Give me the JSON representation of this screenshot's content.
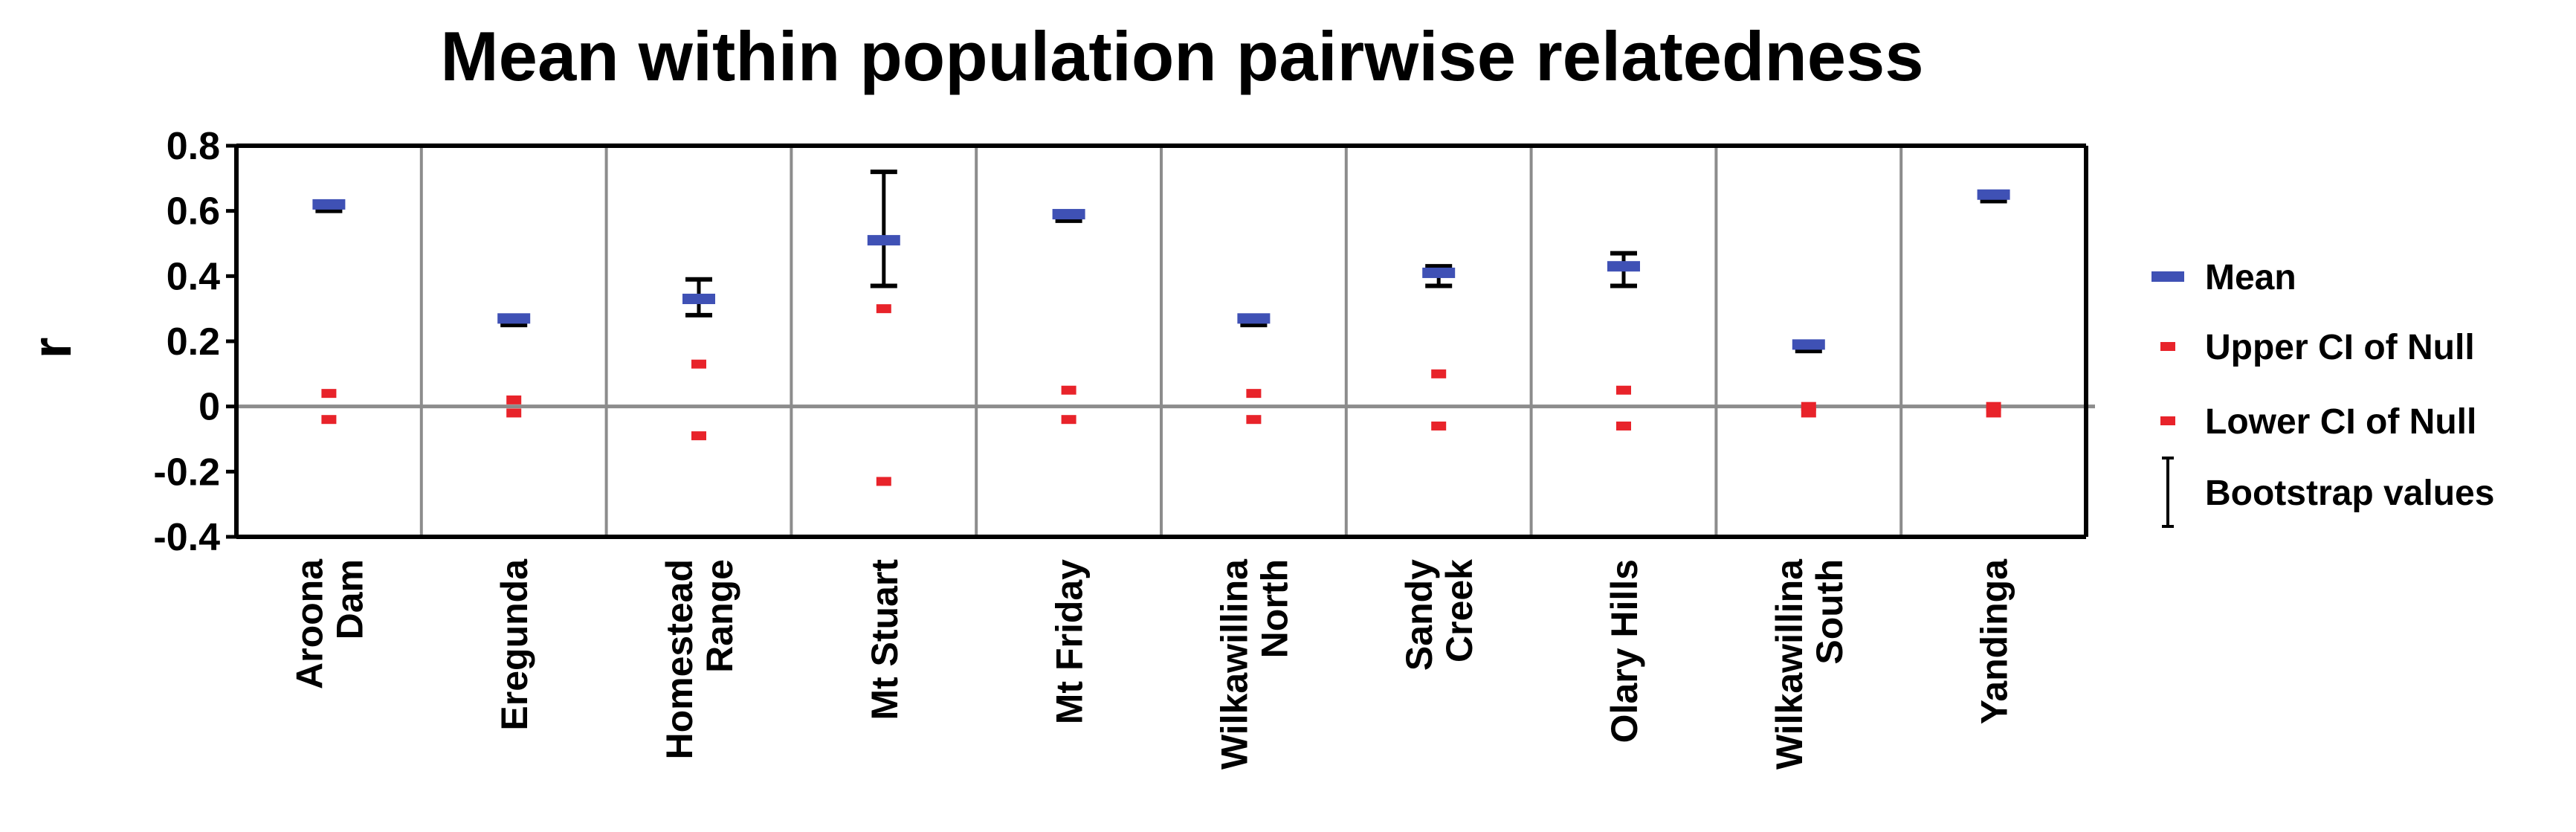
{
  "chart_data": {
    "type": "scatter",
    "title": "Mean within population pairwise relatedness",
    "xlabel": "",
    "ylabel": "r",
    "ylim": [
      -0.4,
      0.8
    ],
    "yticks": [
      "0.8",
      "0.6",
      "0.4",
      "0.2",
      "0",
      "-0.2",
      "-0.4"
    ],
    "ytick_values": [
      0.8,
      0.6,
      0.4,
      0.2,
      0,
      -0.2,
      -0.4
    ],
    "grid": true,
    "legend_position": "right",
    "categories": [
      [
        "Aroona",
        "Dam"
      ],
      [
        "Eregunda"
      ],
      [
        "Homestead",
        "Range"
      ],
      [
        "Mt Stuart"
      ],
      [
        "Mt Friday"
      ],
      [
        "Wilkawillina",
        "North"
      ],
      [
        "Sandy",
        "Creek"
      ],
      [
        "Olary Hills"
      ],
      [
        "Wilkawillina",
        "South"
      ],
      [
        "Yandinga"
      ]
    ],
    "series": [
      {
        "name": "Mean",
        "color": "#3f51b5",
        "values": [
          0.62,
          0.27,
          0.33,
          0.51,
          0.59,
          0.27,
          0.41,
          0.43,
          0.19,
          0.65
        ]
      },
      {
        "name": "Upper CI of Null",
        "color": "#e8232a",
        "values": [
          0.04,
          0.02,
          0.13,
          0.3,
          0.05,
          0.04,
          0.1,
          0.05,
          0.0,
          0.0
        ]
      },
      {
        "name": "Lower CI of Null",
        "color": "#e8232a",
        "values": [
          -0.04,
          -0.02,
          -0.09,
          -0.23,
          -0.04,
          -0.04,
          -0.06,
          -0.06,
          -0.02,
          -0.02
        ]
      },
      {
        "name": "Bootstrap values",
        "color": "#000000",
        "low": [
          0.6,
          0.25,
          0.28,
          0.37,
          0.57,
          0.25,
          0.37,
          0.37,
          0.17,
          0.63
        ],
        "high": [
          0.62,
          0.27,
          0.39,
          0.72,
          0.59,
          0.27,
          0.43,
          0.47,
          0.19,
          0.65
        ]
      }
    ]
  }
}
